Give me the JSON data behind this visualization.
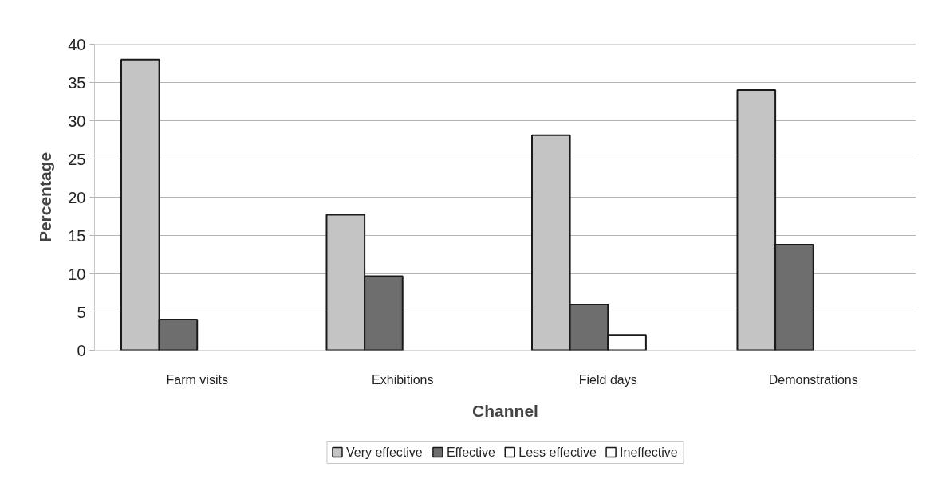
{
  "chart_data": {
    "type": "bar",
    "xlabel": "Channel",
    "ylabel": "Percentage",
    "categories": [
      "Farm visits",
      "Exhibitions",
      "Field days",
      "Demonstrations"
    ],
    "series": [
      {
        "name": "Very effective",
        "color": "#c4c4c4",
        "values": [
          38,
          17.7,
          28.1,
          34
        ]
      },
      {
        "name": "Effective",
        "color": "#6e6e6e",
        "values": [
          4,
          9.7,
          6,
          13.8
        ]
      },
      {
        "name": "Less effective",
        "color": "#ffffff",
        "values": [
          null,
          null,
          2,
          null
        ]
      },
      {
        "name": "Ineffective",
        "color": "#ffffff",
        "values": [
          null,
          null,
          null,
          null
        ]
      }
    ],
    "ylim": [
      0,
      40
    ],
    "yticks": [
      0,
      5,
      10,
      15,
      20,
      25,
      30,
      35,
      40
    ],
    "grid": "y",
    "legend": "bottom"
  }
}
